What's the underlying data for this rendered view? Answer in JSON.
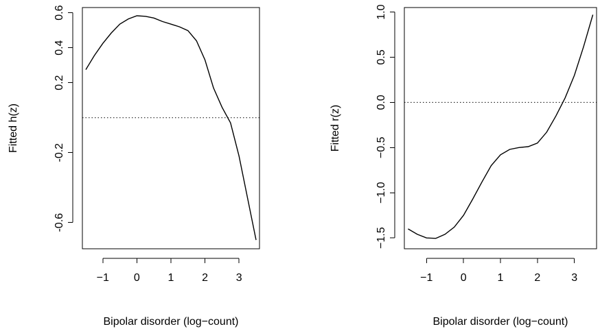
{
  "chart_data": [
    {
      "type": "line",
      "xlabel": "Bipolar disorder (log−count)",
      "ylabel": "Fitted h(z)",
      "xlim": [
        -1.6,
        3.6
      ],
      "ylim": [
        -0.75,
        0.63
      ],
      "xticks": [
        -1,
        0,
        1,
        2,
        3
      ],
      "xtick_labels": [
        "−1",
        "0",
        "1",
        "2",
        "3"
      ],
      "yticks": [
        -0.6,
        -0.2,
        0.2,
        0.4,
        0.6
      ],
      "ytick_labels": [
        "-0.6",
        "-0.2",
        "0.2",
        "0.4",
        "0.6"
      ],
      "reference_line": {
        "y": 0,
        "style": "dotted"
      },
      "grid": false,
      "series": [
        {
          "x": [
            -1.5,
            -1.25,
            -1.0,
            -0.75,
            -0.5,
            -0.25,
            0.0,
            0.25,
            0.5,
            0.75,
            1.0,
            1.25,
            1.5,
            1.75,
            2.0,
            2.25,
            2.5,
            2.75,
            3.0,
            3.25,
            3.5
          ],
          "y": [
            0.275,
            0.355,
            0.425,
            0.485,
            0.535,
            0.565,
            0.583,
            0.58,
            0.57,
            0.55,
            0.535,
            0.52,
            0.498,
            0.44,
            0.33,
            0.17,
            0.06,
            -0.03,
            -0.22,
            -0.46,
            -0.7
          ]
        }
      ]
    },
    {
      "type": "line",
      "xlabel": "Bipolar disorder (log−count)",
      "ylabel": "Fitted r(z)",
      "xlim": [
        -1.6,
        3.6
      ],
      "ylim": [
        -1.62,
        1.05
      ],
      "xticks": [
        -1,
        0,
        1,
        2,
        3
      ],
      "xtick_labels": [
        "−1",
        "0",
        "1",
        "2",
        "3"
      ],
      "yticks": [
        -1.5,
        -1.0,
        -0.5,
        0.0,
        0.5,
        1.0
      ],
      "ytick_labels": [
        "−1.5",
        "−1.0",
        "−0.5",
        "0.0",
        "0.5",
        "1.0"
      ],
      "reference_line": {
        "y": 0,
        "style": "dotted"
      },
      "grid": false,
      "series": [
        {
          "x": [
            -1.5,
            -1.25,
            -1.0,
            -0.75,
            -0.5,
            -0.25,
            0.0,
            0.25,
            0.5,
            0.75,
            1.0,
            1.25,
            1.5,
            1.75,
            2.0,
            2.25,
            2.5,
            2.75,
            3.0,
            3.25,
            3.5
          ],
          "y": [
            -1.4,
            -1.46,
            -1.5,
            -1.505,
            -1.46,
            -1.38,
            -1.25,
            -1.07,
            -0.88,
            -0.7,
            -0.58,
            -0.52,
            -0.5,
            -0.49,
            -0.45,
            -0.33,
            -0.15,
            0.05,
            0.3,
            0.62,
            0.97
          ]
        }
      ]
    }
  ]
}
